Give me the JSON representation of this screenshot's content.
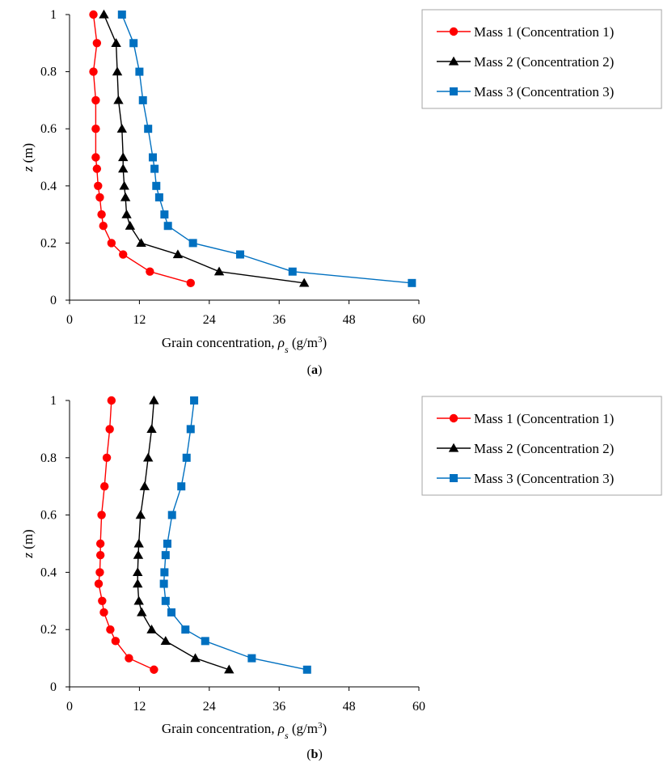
{
  "chart_data": [
    {
      "type": "line",
      "panel_label": "a",
      "xlabel": "Grain concentration, ρs (g/m³)",
      "xlabel_parts": {
        "prefix": "Grain concentration, ",
        "symbol": "ρ",
        "subscript": "s",
        "unit_prefix": " (g/m",
        "unit_sup": "3",
        "unit_suffix": ")"
      },
      "ylabel": "z (m)",
      "ylabel_parts": {
        "italic": "z",
        "rest": " (m)"
      },
      "xlim": [
        0,
        60
      ],
      "ylim": [
        0,
        1
      ],
      "xticks": [
        0,
        12,
        24,
        36,
        48,
        60
      ],
      "xtick_labels": [
        "0",
        "12",
        "24",
        "36",
        "48",
        "60"
      ],
      "yticks": [
        0,
        0.2,
        0.4,
        0.6,
        0.8,
        1
      ],
      "ytick_labels": [
        "0",
        "0.2",
        "0.4",
        "0.6",
        "0.8",
        "1"
      ],
      "grid": false,
      "legend_position": "right",
      "series": [
        {
          "name": "Mass 1 (Concentration 1)",
          "color": "#ff0000",
          "marker": "circle",
          "x": [
            4.1,
            4.7,
            4.1,
            4.5,
            4.5,
            4.5,
            4.7,
            4.9,
            5.2,
            5.5,
            5.8,
            7.2,
            9.2,
            13.8,
            20.8
          ],
          "y": [
            1,
            0.9,
            0.8,
            0.7,
            0.6,
            0.5,
            0.46,
            0.4,
            0.36,
            0.3,
            0.26,
            0.2,
            0.16,
            0.1,
            0.06
          ]
        },
        {
          "name": "Mass 2 (Concentration 2)",
          "color": "#000000",
          "marker": "triangle",
          "x": [
            5.9,
            8.0,
            8.2,
            8.4,
            9.0,
            9.2,
            9.2,
            9.4,
            9.6,
            9.8,
            10.4,
            12.3,
            18.6,
            25.7,
            40.3
          ],
          "y": [
            1,
            0.9,
            0.8,
            0.7,
            0.6,
            0.5,
            0.46,
            0.4,
            0.36,
            0.3,
            0.26,
            0.2,
            0.16,
            0.1,
            0.06
          ]
        },
        {
          "name": "Mass 3 (Concentration 3)",
          "color": "#0070c0",
          "marker": "square",
          "x": [
            9.0,
            11.0,
            12.0,
            12.6,
            13.5,
            14.3,
            14.6,
            14.9,
            15.4,
            16.3,
            16.9,
            21.2,
            29.3,
            38.3,
            58.8
          ],
          "y": [
            1,
            0.9,
            0.8,
            0.7,
            0.6,
            0.5,
            0.46,
            0.4,
            0.36,
            0.3,
            0.26,
            0.2,
            0.16,
            0.1,
            0.06
          ]
        }
      ]
    },
    {
      "type": "line",
      "panel_label": "b",
      "xlabel": "Grain concentration, ρs (g/m³)",
      "xlabel_parts": {
        "prefix": "Grain concentration, ",
        "symbol": "ρ",
        "subscript": "s",
        "unit_prefix": " (g/m",
        "unit_sup": "3",
        "unit_suffix": ")"
      },
      "ylabel": "z (m)",
      "ylabel_parts": {
        "italic": "z",
        "rest": " (m)"
      },
      "xlim": [
        0,
        60
      ],
      "ylim": [
        0,
        1
      ],
      "xticks": [
        0,
        12,
        24,
        36,
        48,
        60
      ],
      "xtick_labels": [
        "0",
        "12",
        "24",
        "36",
        "48",
        "60"
      ],
      "yticks": [
        0,
        0.2,
        0.4,
        0.6,
        0.8,
        1
      ],
      "ytick_labels": [
        "0",
        "0.2",
        "0.4",
        "0.6",
        "0.8",
        "1"
      ],
      "grid": false,
      "legend_position": "right",
      "series": [
        {
          "name": "Mass 1 (Concentration 1)",
          "color": "#ff0000",
          "marker": "circle",
          "x": [
            7.2,
            6.9,
            6.4,
            6.0,
            5.5,
            5.3,
            5.3,
            5.2,
            5.0,
            5.6,
            5.9,
            7.0,
            7.9,
            10.2,
            14.5
          ],
          "y": [
            1,
            0.9,
            0.8,
            0.7,
            0.6,
            0.5,
            0.46,
            0.4,
            0.36,
            0.3,
            0.26,
            0.2,
            0.16,
            0.1,
            0.06
          ]
        },
        {
          "name": "Mass 2 (Concentration 2)",
          "color": "#000000",
          "marker": "triangle",
          "x": [
            14.5,
            14.1,
            13.5,
            12.9,
            12.2,
            11.9,
            11.8,
            11.7,
            11.7,
            11.9,
            12.4,
            14.1,
            16.5,
            21.6,
            27.4
          ],
          "y": [
            1,
            0.9,
            0.8,
            0.7,
            0.6,
            0.5,
            0.46,
            0.4,
            0.36,
            0.3,
            0.26,
            0.2,
            0.16,
            0.1,
            0.06
          ]
        },
        {
          "name": "Mass 3 (Concentration 3)",
          "color": "#0070c0",
          "marker": "square",
          "x": [
            21.4,
            20.8,
            20.1,
            19.2,
            17.6,
            16.8,
            16.5,
            16.3,
            16.2,
            16.5,
            17.5,
            19.9,
            23.3,
            31.3,
            40.8
          ],
          "y": [
            1,
            0.9,
            0.8,
            0.7,
            0.6,
            0.5,
            0.46,
            0.4,
            0.36,
            0.3,
            0.26,
            0.2,
            0.16,
            0.1,
            0.06
          ]
        }
      ]
    }
  ]
}
